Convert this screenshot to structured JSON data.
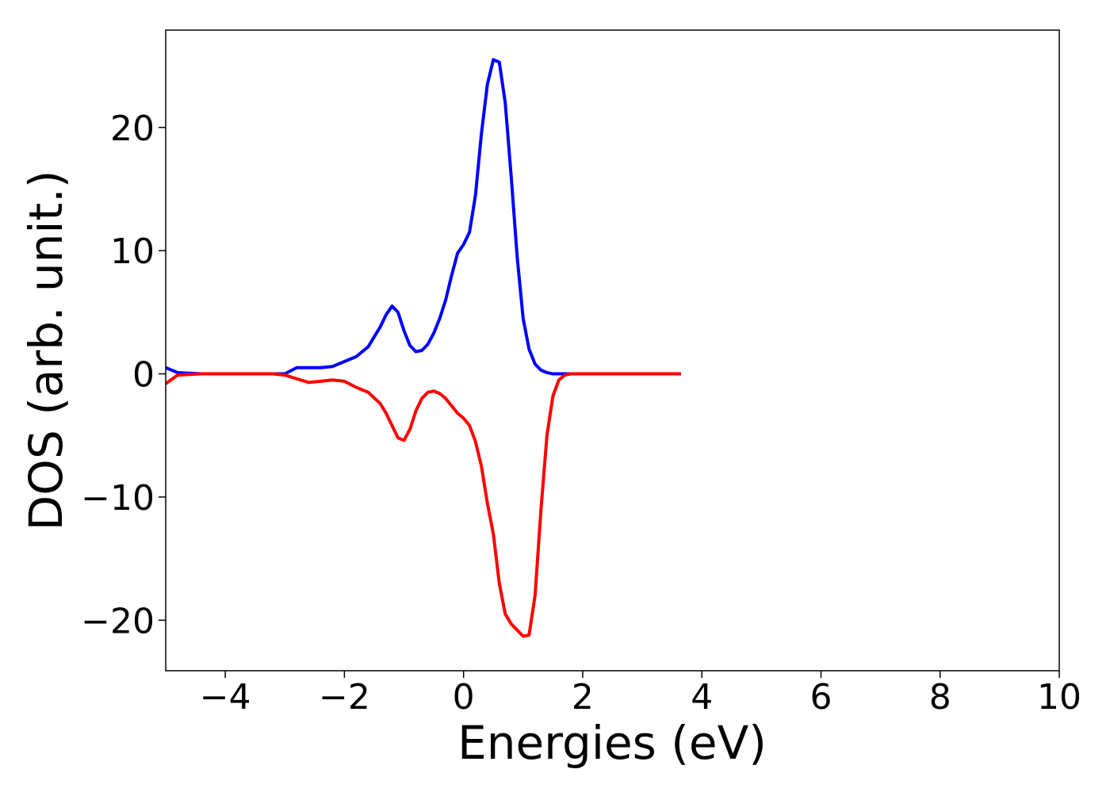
{
  "chart_data": {
    "type": "line",
    "xlabel": "Energies (eV)",
    "ylabel": "DOS (arb. unit.)",
    "x": [
      -5,
      -4.8,
      -4.4,
      -4,
      -3.6,
      -3.2,
      -3.0,
      -2.8,
      -2.6,
      -2.4,
      -2.2,
      -2.0,
      -1.8,
      -1.6,
      -1.4,
      -1.3,
      -1.2,
      -1.1,
      -1.0,
      -0.9,
      -0.8,
      -0.7,
      -0.6,
      -0.5,
      -0.4,
      -0.3,
      -0.2,
      -0.1,
      0,
      0.1,
      0.2,
      0.3,
      0.4,
      0.5,
      0.6,
      0.7,
      0.8,
      0.9,
      1.0,
      1.1,
      1.2,
      1.3,
      1.4,
      1.5,
      1.6,
      1.7,
      1.8,
      2.0,
      2.4,
      3.0,
      3.65
    ],
    "series": [
      {
        "color": "#0000ff",
        "values": [
          0.5,
          0.1,
          0,
          0,
          0,
          0,
          0,
          0.5,
          0.5,
          0.5,
          0.6,
          1.0,
          1.4,
          2.2,
          3.8,
          4.8,
          5.5,
          5.0,
          3.5,
          2.3,
          1.8,
          1.9,
          2.4,
          3.3,
          4.5,
          6.0,
          8.0,
          9.8,
          10.5,
          11.5,
          14.5,
          19.5,
          23.5,
          25.5,
          25.3,
          22,
          16,
          9.5,
          4.5,
          2.0,
          0.8,
          0.3,
          0.1,
          0,
          0,
          0,
          0,
          0,
          0,
          0,
          0
        ]
      },
      {
        "color": "#ff0000",
        "values": [
          -0.8,
          -0.1,
          0,
          0,
          0,
          0,
          -0.1,
          -0.4,
          -0.7,
          -0.6,
          -0.5,
          -0.6,
          -1.1,
          -1.5,
          -2.4,
          -3.2,
          -4.2,
          -5.2,
          -5.4,
          -4.5,
          -3.0,
          -2.0,
          -1.5,
          -1.4,
          -1.6,
          -2.0,
          -2.6,
          -3.2,
          -3.6,
          -4.2,
          -5.5,
          -7.5,
          -10.5,
          -13,
          -17,
          -19.5,
          -20.3,
          -20.8,
          -21.3,
          -21.2,
          -18,
          -11,
          -5,
          -1.8,
          -0.5,
          -0.1,
          0,
          0,
          0,
          0,
          0
        ]
      }
    ],
    "xlim": [
      -5,
      10
    ],
    "ylim": [
      -24.1,
      27.9
    ],
    "xticks": [
      {
        "value": -4,
        "label": "−4"
      },
      {
        "value": -2,
        "label": "−2"
      },
      0,
      2,
      4,
      6,
      8,
      10
    ],
    "yticks": [
      {
        "value": -20,
        "label": "−20"
      },
      {
        "value": -10,
        "label": "−10"
      },
      0,
      10,
      20
    ]
  }
}
